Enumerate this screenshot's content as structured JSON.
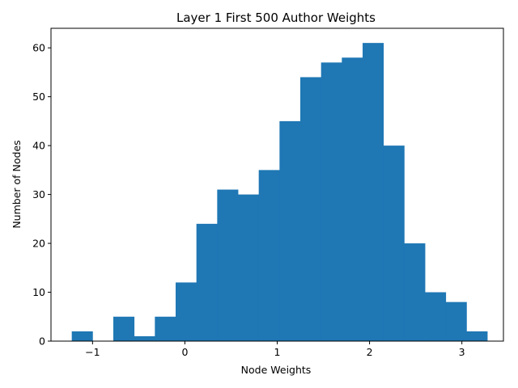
{
  "chart_data": {
    "type": "bar",
    "title": "Layer 1 First 500 Author Weights",
    "xlabel": "Node Weights",
    "ylabel": "Number of Nodes",
    "bin_edges": [
      -1.225,
      -1.0,
      -0.775,
      -0.55,
      -0.325,
      -0.1,
      0.125,
      0.35,
      0.575,
      0.8,
      1.025,
      1.25,
      1.475,
      1.7,
      1.925,
      2.15,
      2.375,
      2.6,
      2.825,
      3.05,
      3.275
    ],
    "values": [
      2,
      0,
      5,
      1,
      5,
      12,
      24,
      31,
      30,
      35,
      45,
      54,
      57,
      58,
      61,
      40,
      20,
      10,
      8,
      2
    ],
    "xlim": [
      -1.45,
      3.45
    ],
    "ylim": [
      0,
      64
    ],
    "xticks": [
      -1,
      0,
      1,
      2,
      3
    ],
    "xtick_labels": [
      "−1",
      "0",
      "1",
      "2",
      "3"
    ],
    "yticks": [
      0,
      10,
      20,
      30,
      40,
      50,
      60
    ],
    "ytick_labels": [
      "0",
      "10",
      "20",
      "30",
      "40",
      "50",
      "60"
    ],
    "grid": false,
    "bar_color": "#1f77b4"
  }
}
